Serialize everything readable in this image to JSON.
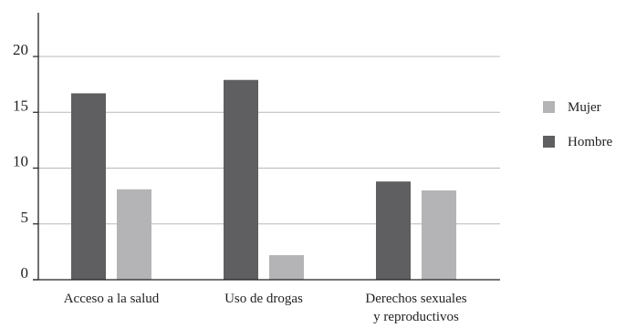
{
  "chart_data": {
    "type": "bar",
    "categories": [
      "Acceso a la salud",
      "Uso de drogas",
      "Derechos sexuales y reproductivos"
    ],
    "category_label_lines": [
      [
        "Acceso a la salud"
      ],
      [
        "Uso de drogas"
      ],
      [
        "Derechos sexuales",
        "y reproductivos"
      ]
    ],
    "series": [
      {
        "name": "Hombre",
        "values": [
          16.7,
          17.9,
          8.8
        ],
        "color": "#5f5f61"
      },
      {
        "name": "Mujer",
        "values": [
          8.1,
          2.2,
          8.0
        ],
        "color": "#b4b4b6"
      }
    ],
    "legend_order": [
      "Mujer",
      "Hombre"
    ],
    "yticks": [
      "0",
      "5",
      "10",
      "15",
      "20"
    ],
    "ylim": [
      0,
      20
    ],
    "grid": true,
    "legend_position": "right",
    "title": "",
    "xlabel": "",
    "ylabel": ""
  }
}
